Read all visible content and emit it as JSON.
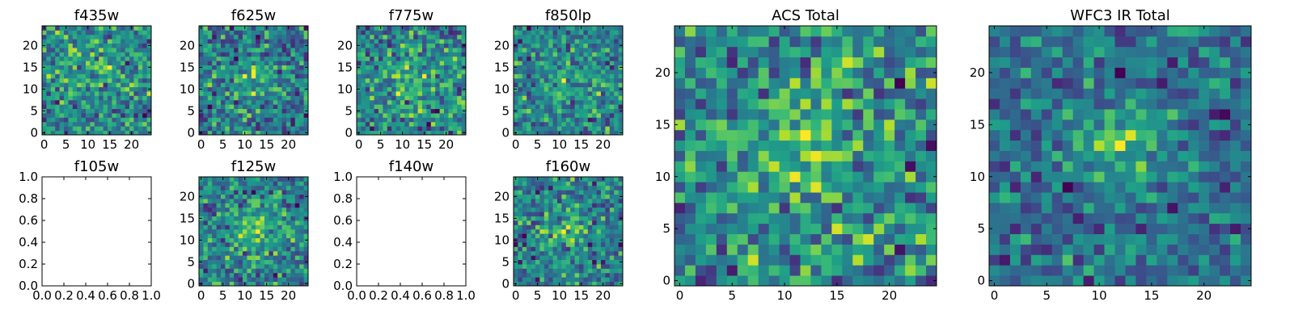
{
  "chart_data": [
    {
      "type": "heatmap",
      "title": "f435w",
      "grid_size": 25,
      "xticks": [
        0,
        5,
        10,
        15,
        20
      ],
      "yticks": [
        0,
        5,
        10,
        15,
        20
      ],
      "xlim": [
        -0.5,
        24.5
      ],
      "ylim": [
        -0.5,
        24.5
      ],
      "colormap": "viridis",
      "has_image": true,
      "seed": 11,
      "source_peak": [
        11,
        14
      ],
      "source_amp": 0.25,
      "source_width": 4
    },
    {
      "type": "heatmap",
      "title": "f625w",
      "grid_size": 25,
      "xticks": [
        0,
        5,
        10,
        15,
        20
      ],
      "yticks": [
        0,
        5,
        10,
        15,
        20
      ],
      "xlim": [
        -0.5,
        24.5
      ],
      "ylim": [
        -0.5,
        24.5
      ],
      "colormap": "viridis",
      "has_image": true,
      "seed": 23,
      "source_peak": [
        12,
        13
      ],
      "source_amp": 0.3,
      "source_width": 4
    },
    {
      "type": "heatmap",
      "title": "f775w",
      "grid_size": 25,
      "xticks": [
        0,
        5,
        10,
        15,
        20
      ],
      "yticks": [
        0,
        5,
        10,
        15,
        20
      ],
      "xlim": [
        -0.5,
        24.5
      ],
      "ylim": [
        -0.5,
        24.5
      ],
      "colormap": "viridis",
      "has_image": true,
      "seed": 37,
      "source_peak": [
        12,
        12
      ],
      "source_amp": 0.3,
      "source_width": 4
    },
    {
      "type": "heatmap",
      "title": "f850lp",
      "grid_size": 25,
      "xticks": [
        0,
        5,
        10,
        15,
        20
      ],
      "yticks": [
        0,
        5,
        10,
        15,
        20
      ],
      "xlim": [
        -0.5,
        24.5
      ],
      "ylim": [
        -0.5,
        24.5
      ],
      "colormap": "viridis",
      "has_image": true,
      "seed": 41,
      "source_peak": [
        12,
        12
      ],
      "source_amp": 0.25,
      "source_width": 4
    },
    {
      "type": "heatmap",
      "title": "f105w",
      "xticks": [
        0.0,
        0.2,
        0.4,
        0.6,
        0.8,
        1.0
      ],
      "yticks": [
        0.0,
        0.2,
        0.4,
        0.6,
        0.8,
        1.0
      ],
      "xlim": [
        0,
        1
      ],
      "ylim": [
        0,
        1
      ],
      "has_image": false
    },
    {
      "type": "heatmap",
      "title": "f125w",
      "grid_size": 25,
      "xticks": [
        0,
        5,
        10,
        15,
        20
      ],
      "yticks": [
        0,
        5,
        10,
        15,
        20
      ],
      "xlim": [
        -0.5,
        24.5
      ],
      "ylim": [
        -0.5,
        24.5
      ],
      "colormap": "viridis",
      "has_image": true,
      "seed": 53,
      "source_peak": [
        12,
        12
      ],
      "source_amp": 0.45,
      "source_width": 3.5
    },
    {
      "type": "heatmap",
      "title": "f140w",
      "xticks": [
        0.0,
        0.2,
        0.4,
        0.6,
        0.8,
        1.0
      ],
      "yticks": [
        0.0,
        0.2,
        0.4,
        0.6,
        0.8,
        1.0
      ],
      "xlim": [
        0,
        1
      ],
      "ylim": [
        0,
        1
      ],
      "has_image": false
    },
    {
      "type": "heatmap",
      "title": "f160w",
      "grid_size": 25,
      "xticks": [
        0,
        5,
        10,
        15,
        20
      ],
      "yticks": [
        0,
        5,
        10,
        15,
        20
      ],
      "xlim": [
        -0.5,
        24.5
      ],
      "ylim": [
        -0.5,
        24.5
      ],
      "colormap": "viridis",
      "has_image": true,
      "seed": 67,
      "source_peak": [
        11,
        12
      ],
      "source_amp": 0.4,
      "source_width": 3.5
    },
    {
      "type": "heatmap",
      "title": "ACS Total",
      "grid_size": 25,
      "xticks": [
        0,
        5,
        10,
        15,
        20
      ],
      "yticks": [
        0,
        5,
        10,
        15,
        20
      ],
      "xlim": [
        -0.5,
        24.5
      ],
      "ylim": [
        -0.5,
        24.5
      ],
      "colormap": "viridis",
      "has_image": true,
      "seed": 79,
      "source_peak": [
        12,
        13
      ],
      "source_amp": 0.35,
      "source_width": 3.5
    },
    {
      "type": "heatmap",
      "title": "WFC3 IR Total",
      "grid_size": 25,
      "xticks": [
        0,
        5,
        10,
        15,
        20
      ],
      "yticks": [
        0,
        5,
        10,
        15,
        20
      ],
      "xlim": [
        -0.5,
        24.5
      ],
      "ylim": [
        -0.5,
        24.5
      ],
      "colormap": "viridis",
      "has_image": true,
      "seed": 97,
      "source_peak": [
        12,
        13
      ],
      "source_amp": 0.55,
      "source_width": 3
    }
  ]
}
